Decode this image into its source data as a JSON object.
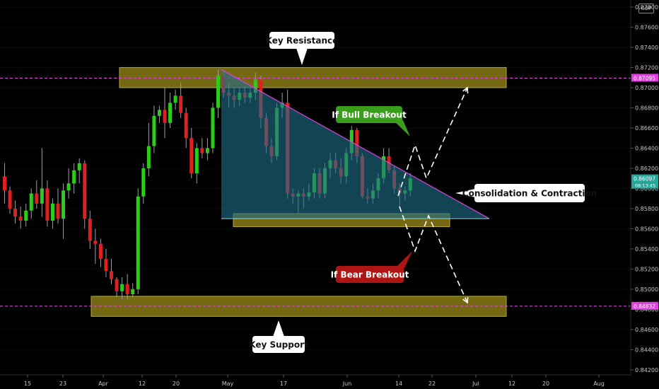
{
  "chart_data": {
    "type": "candlestick",
    "instrument_currency": "GBP",
    "x_ticks": [
      "15",
      "23",
      "Apr",
      "12",
      "20",
      "May",
      "17",
      "Jun",
      "14",
      "22",
      "Jul",
      "12",
      "20",
      "Aug"
    ],
    "y_ticks": [
      "0.87800",
      "0.87600",
      "0.87400",
      "0.87200",
      "0.87000",
      "0.86800",
      "0.86600",
      "0.86400",
      "0.86200",
      "0.86000",
      "0.85800",
      "0.85600",
      "0.85400",
      "0.85200",
      "0.85000",
      "0.84800",
      "0.84600",
      "0.84400",
      "0.84200"
    ],
    "ylim": [
      0.8415,
      0.8787
    ],
    "price_labels": [
      {
        "value": 0.87095,
        "text": "0.87095",
        "time": "",
        "color": "#e040e0"
      },
      {
        "value": 0.86097,
        "text": "0.86097",
        "time": "08:13:45",
        "color": "#26a69a"
      },
      {
        "value": 0.84832,
        "text": "0.84832",
        "time": "",
        "color": "#e040e0"
      }
    ],
    "horizontal_lines": [
      0.87095,
      0.84832
    ],
    "zones": [
      {
        "name": "key-resistance-zone",
        "low": 0.87,
        "high": 0.872
      },
      {
        "name": "triangle-base-zone",
        "low": 0.8562,
        "high": 0.8575
      },
      {
        "name": "key-support-zone",
        "low": 0.8473,
        "high": 0.8493
      }
    ],
    "candles": [
      {
        "o": 0.8612,
        "h": 0.8625,
        "l": 0.8585,
        "c": 0.8598
      },
      {
        "o": 0.8598,
        "h": 0.8602,
        "l": 0.8575,
        "c": 0.858
      },
      {
        "o": 0.858,
        "h": 0.8588,
        "l": 0.8565,
        "c": 0.8572
      },
      {
        "o": 0.8572,
        "h": 0.8582,
        "l": 0.856,
        "c": 0.8568
      },
      {
        "o": 0.8568,
        "h": 0.8585,
        "l": 0.8562,
        "c": 0.8578
      },
      {
        "o": 0.8578,
        "h": 0.86,
        "l": 0.857,
        "c": 0.8595
      },
      {
        "o": 0.8595,
        "h": 0.8608,
        "l": 0.858,
        "c": 0.8585
      },
      {
        "o": 0.8585,
        "h": 0.864,
        "l": 0.8572,
        "c": 0.86
      },
      {
        "o": 0.86,
        "h": 0.8608,
        "l": 0.8562,
        "c": 0.8568
      },
      {
        "o": 0.8568,
        "h": 0.859,
        "l": 0.856,
        "c": 0.8585
      },
      {
        "o": 0.8585,
        "h": 0.86,
        "l": 0.8565,
        "c": 0.857
      },
      {
        "o": 0.857,
        "h": 0.8605,
        "l": 0.855,
        "c": 0.8598
      },
      {
        "o": 0.8598,
        "h": 0.862,
        "l": 0.859,
        "c": 0.8605
      },
      {
        "o": 0.8605,
        "h": 0.8625,
        "l": 0.8595,
        "c": 0.8618
      },
      {
        "o": 0.8618,
        "h": 0.863,
        "l": 0.8605,
        "c": 0.8625
      },
      {
        "o": 0.8625,
        "h": 0.8628,
        "l": 0.856,
        "c": 0.857
      },
      {
        "o": 0.857,
        "h": 0.8578,
        "l": 0.854,
        "c": 0.8548
      },
      {
        "o": 0.8548,
        "h": 0.856,
        "l": 0.8525,
        "c": 0.8545
      },
      {
        "o": 0.8545,
        "h": 0.855,
        "l": 0.8522,
        "c": 0.853
      },
      {
        "o": 0.853,
        "h": 0.854,
        "l": 0.8512,
        "c": 0.8518
      },
      {
        "o": 0.8518,
        "h": 0.853,
        "l": 0.8505,
        "c": 0.851
      },
      {
        "o": 0.851,
        "h": 0.8512,
        "l": 0.8492,
        "c": 0.8498
      },
      {
        "o": 0.8498,
        "h": 0.8512,
        "l": 0.849,
        "c": 0.8505
      },
      {
        "o": 0.8505,
        "h": 0.8515,
        "l": 0.849,
        "c": 0.8495
      },
      {
        "o": 0.8495,
        "h": 0.8506,
        "l": 0.8492,
        "c": 0.85
      },
      {
        "o": 0.85,
        "h": 0.86,
        "l": 0.8495,
        "c": 0.8592
      },
      {
        "o": 0.8592,
        "h": 0.8625,
        "l": 0.8585,
        "c": 0.862
      },
      {
        "o": 0.862,
        "h": 0.8665,
        "l": 0.8612,
        "c": 0.8642
      },
      {
        "o": 0.8642,
        "h": 0.8682,
        "l": 0.8635,
        "c": 0.8672
      },
      {
        "o": 0.8672,
        "h": 0.8682,
        "l": 0.8665,
        "c": 0.8678
      },
      {
        "o": 0.8678,
        "h": 0.87,
        "l": 0.865,
        "c": 0.8665
      },
      {
        "o": 0.8665,
        "h": 0.8695,
        "l": 0.866,
        "c": 0.8685
      },
      {
        "o": 0.8685,
        "h": 0.8698,
        "l": 0.8678,
        "c": 0.8692
      },
      {
        "o": 0.8692,
        "h": 0.8705,
        "l": 0.867,
        "c": 0.8675
      },
      {
        "o": 0.8675,
        "h": 0.868,
        "l": 0.864,
        "c": 0.865
      },
      {
        "o": 0.865,
        "h": 0.866,
        "l": 0.861,
        "c": 0.8615
      },
      {
        "o": 0.8615,
        "h": 0.8645,
        "l": 0.8605,
        "c": 0.864
      },
      {
        "o": 0.864,
        "h": 0.865,
        "l": 0.863,
        "c": 0.8635
      },
      {
        "o": 0.8635,
        "h": 0.865,
        "l": 0.8628,
        "c": 0.864
      },
      {
        "o": 0.864,
        "h": 0.8685,
        "l": 0.8635,
        "c": 0.868
      },
      {
        "o": 0.868,
        "h": 0.8718,
        "l": 0.867,
        "c": 0.8712
      },
      {
        "o": 0.8712,
        "h": 0.8716,
        "l": 0.869,
        "c": 0.8695
      },
      {
        "o": 0.8695,
        "h": 0.8705,
        "l": 0.868,
        "c": 0.8692
      },
      {
        "o": 0.8692,
        "h": 0.87,
        "l": 0.868,
        "c": 0.8688
      },
      {
        "o": 0.8688,
        "h": 0.87,
        "l": 0.8682,
        "c": 0.8695
      },
      {
        "o": 0.8695,
        "h": 0.8702,
        "l": 0.8685,
        "c": 0.869
      },
      {
        "o": 0.869,
        "h": 0.87,
        "l": 0.8685,
        "c": 0.8695
      },
      {
        "o": 0.8695,
        "h": 0.8715,
        "l": 0.8688,
        "c": 0.8708
      },
      {
        "o": 0.8708,
        "h": 0.8712,
        "l": 0.866,
        "c": 0.867
      },
      {
        "o": 0.867,
        "h": 0.8675,
        "l": 0.8635,
        "c": 0.8642
      },
      {
        "o": 0.8642,
        "h": 0.865,
        "l": 0.8625,
        "c": 0.8632
      },
      {
        "o": 0.8632,
        "h": 0.8685,
        "l": 0.8628,
        "c": 0.868
      },
      {
        "o": 0.868,
        "h": 0.8695,
        "l": 0.867,
        "c": 0.8685
      },
      {
        "o": 0.8685,
        "h": 0.8698,
        "l": 0.859,
        "c": 0.8595
      },
      {
        "o": 0.8595,
        "h": 0.86,
        "l": 0.8585,
        "c": 0.8592
      },
      {
        "o": 0.8592,
        "h": 0.8598,
        "l": 0.8575,
        "c": 0.8595
      },
      {
        "o": 0.8595,
        "h": 0.86,
        "l": 0.858,
        "c": 0.8592
      },
      {
        "o": 0.8592,
        "h": 0.8605,
        "l": 0.8588,
        "c": 0.8596
      },
      {
        "o": 0.8596,
        "h": 0.862,
        "l": 0.859,
        "c": 0.8615
      },
      {
        "o": 0.8615,
        "h": 0.862,
        "l": 0.859,
        "c": 0.8595
      },
      {
        "o": 0.8595,
        "h": 0.8625,
        "l": 0.859,
        "c": 0.862
      },
      {
        "o": 0.862,
        "h": 0.8635,
        "l": 0.861,
        "c": 0.8628
      },
      {
        "o": 0.8628,
        "h": 0.8635,
        "l": 0.8615,
        "c": 0.862
      },
      {
        "o": 0.862,
        "h": 0.863,
        "l": 0.8605,
        "c": 0.8612
      },
      {
        "o": 0.8612,
        "h": 0.864,
        "l": 0.8605,
        "c": 0.8635
      },
      {
        "o": 0.8635,
        "h": 0.8662,
        "l": 0.8628,
        "c": 0.8658
      },
      {
        "o": 0.8658,
        "h": 0.866,
        "l": 0.8625,
        "c": 0.8632
      },
      {
        "o": 0.8632,
        "h": 0.8635,
        "l": 0.859,
        "c": 0.8592
      },
      {
        "o": 0.8592,
        "h": 0.86,
        "l": 0.8585,
        "c": 0.859
      },
      {
        "o": 0.859,
        "h": 0.8605,
        "l": 0.8585,
        "c": 0.8598
      },
      {
        "o": 0.8598,
        "h": 0.8615,
        "l": 0.859,
        "c": 0.861
      },
      {
        "o": 0.861,
        "h": 0.864,
        "l": 0.8605,
        "c": 0.8632
      },
      {
        "o": 0.8632,
        "h": 0.864,
        "l": 0.8615,
        "c": 0.8618
      },
      {
        "o": 0.8618,
        "h": 0.8622,
        "l": 0.8595,
        "c": 0.86
      },
      {
        "o": 0.86,
        "h": 0.8605,
        "l": 0.858,
        "c": 0.8595
      },
      {
        "o": 0.8595,
        "h": 0.8602,
        "l": 0.8588,
        "c": 0.8598
      },
      {
        "o": 0.8598,
        "h": 0.8615,
        "l": 0.8592,
        "c": 0.861
      }
    ],
    "annotations": [
      "Key Resistance",
      "If Bull Breakout",
      "Consolidation & Contraction",
      "If Bear Breakout",
      "Key Support"
    ],
    "colors": {
      "up": "#2ecc1a",
      "down": "#e02020",
      "zone": "#8a7a16",
      "triangle": "#1e6e88",
      "line": "#e040e0"
    }
  }
}
